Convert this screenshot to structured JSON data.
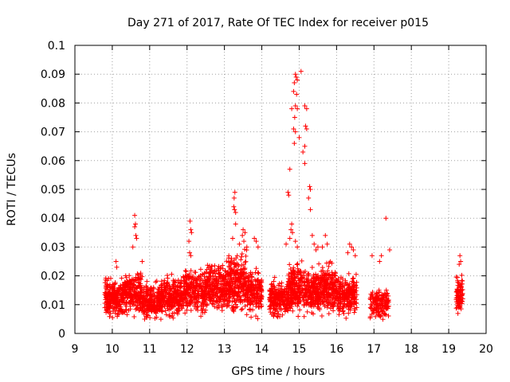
{
  "chart_data": {
    "type": "scatter",
    "title": "Day 271 of 2017, Rate Of TEC Index for receiver p015",
    "xlabel": "GPS time / hours",
    "ylabel": "ROTI / TECUs",
    "xlim": [
      9,
      20
    ],
    "ylim": [
      0,
      0.1
    ],
    "xticks": [
      "9",
      "10",
      "11",
      "12",
      "13",
      "14",
      "15",
      "16",
      "17",
      "18",
      "19",
      "20"
    ],
    "yticks": [
      "0",
      "0.01",
      "0.02",
      "0.03",
      "0.04",
      "0.05",
      "0.06",
      "0.07",
      "0.08",
      "0.09",
      "0.1"
    ],
    "grid": true,
    "marker": "+",
    "color": "#ff0000",
    "segments": [
      {
        "x": [
          9.8,
          10.35
        ],
        "base": [
          0.004,
          0.019
        ],
        "n": 260
      },
      {
        "x": [
          10.35,
          10.8
        ],
        "base": [
          0.004,
          0.021
        ],
        "n": 200
      },
      {
        "x": [
          10.8,
          11.3
        ],
        "base": [
          0.003,
          0.017
        ],
        "n": 220
      },
      {
        "x": [
          11.3,
          11.9
        ],
        "base": [
          0.004,
          0.019
        ],
        "n": 260
      },
      {
        "x": [
          11.9,
          12.5
        ],
        "base": [
          0.004,
          0.022
        ],
        "n": 260
      },
      {
        "x": [
          12.5,
          13.1
        ],
        "base": [
          0.005,
          0.024
        ],
        "n": 280
      },
      {
        "x": [
          13.1,
          13.6
        ],
        "base": [
          0.004,
          0.028
        ],
        "n": 260
      },
      {
        "x": [
          13.6,
          14.0
        ],
        "base": [
          0.004,
          0.022
        ],
        "n": 170
      },
      {
        "x": [
          14.2,
          14.7
        ],
        "base": [
          0.004,
          0.018
        ],
        "n": 220
      },
      {
        "x": [
          14.7,
          15.1
        ],
        "base": [
          0.005,
          0.024
        ],
        "n": 220
      },
      {
        "x": [
          15.1,
          15.6
        ],
        "base": [
          0.004,
          0.022
        ],
        "n": 230
      },
      {
        "x": [
          15.6,
          16.0
        ],
        "base": [
          0.005,
          0.024
        ],
        "n": 190
      },
      {
        "x": [
          16.0,
          16.55
        ],
        "base": [
          0.004,
          0.02
        ],
        "n": 230
      },
      {
        "x": [
          16.9,
          17.4
        ],
        "base": [
          0.003,
          0.016
        ],
        "n": 150
      },
      {
        "x": [
          19.2,
          19.38
        ],
        "base": [
          0.005,
          0.02
        ],
        "n": 90
      }
    ],
    "spikes": [
      {
        "x": 10.1,
        "y": 0.025
      },
      {
        "x": 10.12,
        "y": 0.023
      },
      {
        "x": 10.55,
        "y": 0.03
      },
      {
        "x": 10.6,
        "y": 0.041
      },
      {
        "x": 10.62,
        "y": 0.038
      },
      {
        "x": 10.6,
        "y": 0.037
      },
      {
        "x": 10.63,
        "y": 0.034
      },
      {
        "x": 10.65,
        "y": 0.033
      },
      {
        "x": 10.8,
        "y": 0.025
      },
      {
        "x": 12.08,
        "y": 0.039
      },
      {
        "x": 12.1,
        "y": 0.036
      },
      {
        "x": 12.12,
        "y": 0.035
      },
      {
        "x": 12.05,
        "y": 0.032
      },
      {
        "x": 12.07,
        "y": 0.028
      },
      {
        "x": 12.1,
        "y": 0.027
      },
      {
        "x": 13.28,
        "y": 0.049
      },
      {
        "x": 13.26,
        "y": 0.047
      },
      {
        "x": 13.25,
        "y": 0.044
      },
      {
        "x": 13.27,
        "y": 0.043
      },
      {
        "x": 13.3,
        "y": 0.042
      },
      {
        "x": 13.3,
        "y": 0.038
      },
      {
        "x": 13.22,
        "y": 0.033
      },
      {
        "x": 13.5,
        "y": 0.036
      },
      {
        "x": 13.55,
        "y": 0.035
      },
      {
        "x": 13.48,
        "y": 0.034
      },
      {
        "x": 13.52,
        "y": 0.032
      },
      {
        "x": 13.6,
        "y": 0.03
      },
      {
        "x": 13.4,
        "y": 0.031
      },
      {
        "x": 13.8,
        "y": 0.033
      },
      {
        "x": 13.85,
        "y": 0.032
      },
      {
        "x": 13.9,
        "y": 0.03
      },
      {
        "x": 14.75,
        "y": 0.057
      },
      {
        "x": 14.7,
        "y": 0.049
      },
      {
        "x": 14.72,
        "y": 0.048
      },
      {
        "x": 14.8,
        "y": 0.078
      },
      {
        "x": 14.85,
        "y": 0.084
      },
      {
        "x": 14.87,
        "y": 0.087
      },
      {
        "x": 14.9,
        "y": 0.09
      },
      {
        "x": 14.92,
        "y": 0.089
      },
      {
        "x": 14.95,
        "y": 0.088
      },
      {
        "x": 14.93,
        "y": 0.083
      },
      {
        "x": 14.9,
        "y": 0.079
      },
      {
        "x": 14.95,
        "y": 0.078
      },
      {
        "x": 14.88,
        "y": 0.075
      },
      {
        "x": 14.85,
        "y": 0.071
      },
      {
        "x": 14.9,
        "y": 0.07
      },
      {
        "x": 14.87,
        "y": 0.066
      },
      {
        "x": 15.0,
        "y": 0.068
      },
      {
        "x": 15.05,
        "y": 0.091
      },
      {
        "x": 15.15,
        "y": 0.079
      },
      {
        "x": 15.2,
        "y": 0.078
      },
      {
        "x": 15.17,
        "y": 0.072
      },
      {
        "x": 15.2,
        "y": 0.071
      },
      {
        "x": 15.15,
        "y": 0.065
      },
      {
        "x": 15.1,
        "y": 0.063
      },
      {
        "x": 15.15,
        "y": 0.059
      },
      {
        "x": 15.28,
        "y": 0.051
      },
      {
        "x": 15.3,
        "y": 0.05
      },
      {
        "x": 15.25,
        "y": 0.047
      },
      {
        "x": 15.3,
        "y": 0.043
      },
      {
        "x": 14.8,
        "y": 0.038
      },
      {
        "x": 14.78,
        "y": 0.036
      },
      {
        "x": 14.82,
        "y": 0.035
      },
      {
        "x": 14.75,
        "y": 0.033
      },
      {
        "x": 14.9,
        "y": 0.032
      },
      {
        "x": 14.95,
        "y": 0.03
      },
      {
        "x": 14.65,
        "y": 0.031
      },
      {
        "x": 15.35,
        "y": 0.034
      },
      {
        "x": 15.4,
        "y": 0.031
      },
      {
        "x": 15.45,
        "y": 0.029
      },
      {
        "x": 15.5,
        "y": 0.03
      },
      {
        "x": 15.62,
        "y": 0.03
      },
      {
        "x": 15.7,
        "y": 0.034
      },
      {
        "x": 15.75,
        "y": 0.031
      },
      {
        "x": 16.35,
        "y": 0.031
      },
      {
        "x": 16.4,
        "y": 0.03
      },
      {
        "x": 16.45,
        "y": 0.029
      },
      {
        "x": 16.3,
        "y": 0.028
      },
      {
        "x": 16.5,
        "y": 0.027
      },
      {
        "x": 16.95,
        "y": 0.027
      },
      {
        "x": 17.2,
        "y": 0.027
      },
      {
        "x": 17.15,
        "y": 0.025
      },
      {
        "x": 17.32,
        "y": 0.04
      },
      {
        "x": 17.42,
        "y": 0.029
      },
      {
        "x": 19.3,
        "y": 0.027
      },
      {
        "x": 19.32,
        "y": 0.025
      },
      {
        "x": 19.28,
        "y": 0.024
      }
    ]
  }
}
